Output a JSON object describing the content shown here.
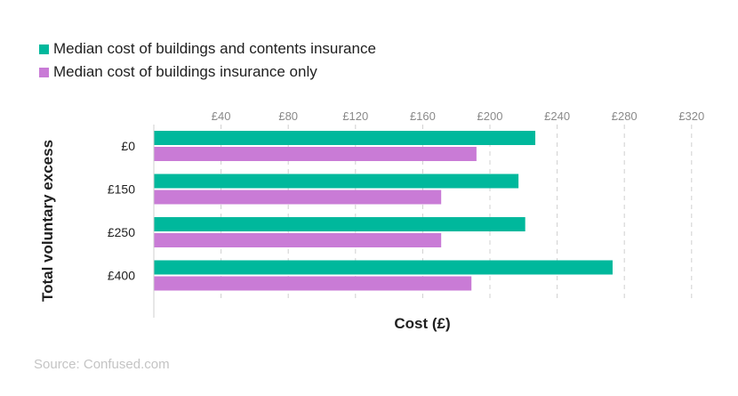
{
  "chart_data": {
    "type": "bar",
    "orientation": "horizontal",
    "categories": [
      "£0",
      "£150",
      "£250",
      "£400"
    ],
    "series": [
      {
        "name": "Median cost of buildings and contents insurance",
        "color": "#00b89c",
        "values": [
          227,
          217,
          221,
          273
        ]
      },
      {
        "name": "Median cost of buildings insurance only",
        "color": "#c97bd6",
        "values": [
          192,
          171,
          171,
          189
        ]
      }
    ],
    "x_ticks": [
      "£40",
      "£80",
      "£120",
      "£160",
      "£200",
      "£240",
      "£280",
      "£320"
    ],
    "x_tick_values": [
      40,
      80,
      120,
      160,
      200,
      240,
      280,
      320
    ],
    "xlabel": "Cost (£)",
    "ylabel": "Total voluntary excess",
    "xlim": [
      0,
      320
    ],
    "x_axis_position": "top",
    "grid": "dashed vertical",
    "legend_position": "top-left"
  },
  "source": "Source: Confused.com"
}
